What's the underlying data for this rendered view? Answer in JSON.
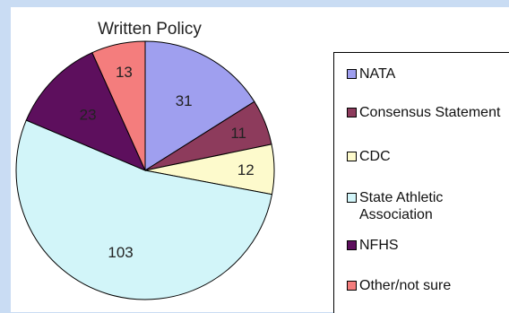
{
  "chart_data": {
    "type": "pie",
    "title": "Written Policy",
    "slices": [
      {
        "label": "NATA",
        "value": 31,
        "color": "#9f9fef"
      },
      {
        "label": "Consensus Statement",
        "value": 11,
        "color": "#8d3b5c"
      },
      {
        "label": "CDC",
        "value": 12,
        "color": "#fdfacc"
      },
      {
        "label": "State Athletic Association",
        "value": 103,
        "color": "#d2f5f9"
      },
      {
        "label": "NFHS",
        "value": 23,
        "color": "#5d0f5d"
      },
      {
        "label": "Other/not sure",
        "value": 13,
        "color": "#f47d7d"
      }
    ],
    "legend_position": "right"
  }
}
